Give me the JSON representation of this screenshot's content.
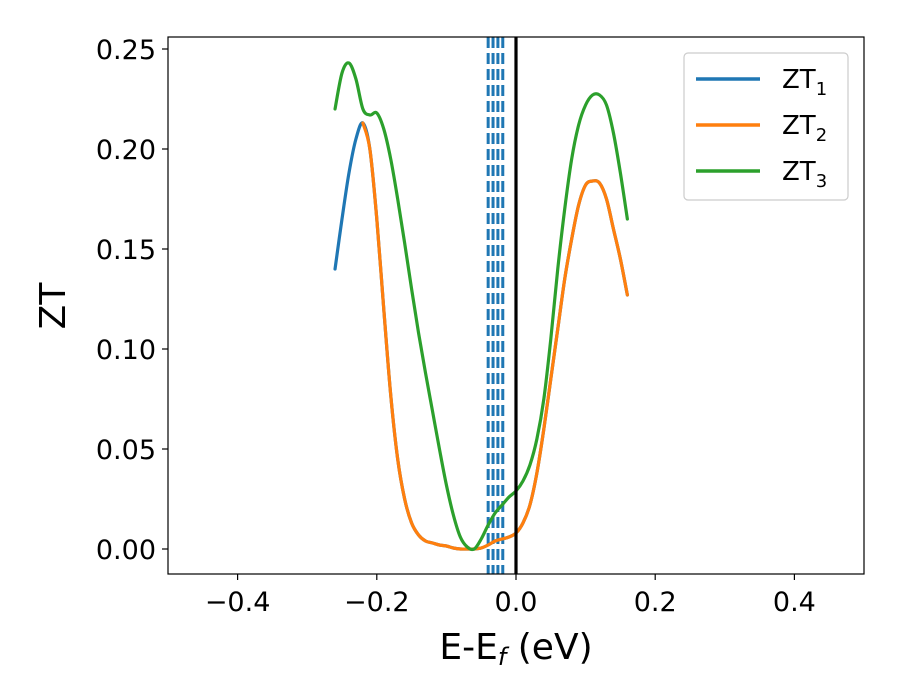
{
  "chart_data": {
    "type": "line",
    "xlabel": "E-E",
    "xlabel_sub": "f",
    "xlabel_unit": " (eV)",
    "ylabel": "ZT",
    "xlim": [
      -0.5,
      0.5
    ],
    "ylim": [
      -0.0125,
      0.256
    ],
    "xticks": [
      -0.4,
      -0.2,
      0.0,
      0.2,
      0.4
    ],
    "xtick_labels": [
      "−0.4",
      "−0.2",
      "0.0",
      "0.2",
      "0.4"
    ],
    "yticks": [
      0.0,
      0.05,
      0.1,
      0.15,
      0.2,
      0.25
    ],
    "ytick_labels": [
      "0.00",
      "0.05",
      "0.10",
      "0.15",
      "0.20",
      "0.25"
    ],
    "grid": false,
    "legend_position": "top-right",
    "series": [
      {
        "name": "ZT",
        "sub": "1",
        "color": "#1f77b4",
        "x": [
          -0.26,
          -0.25,
          -0.24,
          -0.23,
          -0.22,
          -0.21,
          -0.2,
          -0.19,
          -0.18,
          -0.17,
          -0.16,
          -0.15,
          -0.14,
          -0.13,
          -0.12,
          -0.11,
          -0.1,
          -0.09,
          -0.08,
          -0.07,
          -0.06,
          -0.05,
          -0.04,
          -0.03,
          -0.02,
          -0.01,
          0.0,
          0.01,
          0.02,
          0.03,
          0.04,
          0.05,
          0.06,
          0.07,
          0.08,
          0.09,
          0.1,
          0.11,
          0.12,
          0.13,
          0.14,
          0.15,
          0.16
        ],
        "y": [
          0.14,
          0.165,
          0.188,
          0.205,
          0.213,
          0.2,
          0.165,
          0.12,
          0.077,
          0.045,
          0.025,
          0.013,
          0.007,
          0.004,
          0.003,
          0.002,
          0.0015,
          0.0005,
          0.0,
          0.0,
          0.0,
          0.0005,
          0.002,
          0.004,
          0.005,
          0.006,
          0.008,
          0.013,
          0.022,
          0.038,
          0.06,
          0.085,
          0.11,
          0.135,
          0.155,
          0.172,
          0.182,
          0.184,
          0.183,
          0.175,
          0.16,
          0.145,
          0.127
        ]
      },
      {
        "name": "ZT",
        "sub": "2",
        "color": "#ff7f0e",
        "x": [
          -0.22,
          -0.21,
          -0.2,
          -0.19,
          -0.18,
          -0.17,
          -0.16,
          -0.15,
          -0.14,
          -0.13,
          -0.12,
          -0.11,
          -0.1,
          -0.09,
          -0.08,
          -0.07,
          -0.06,
          -0.05,
          -0.04,
          -0.03,
          -0.02,
          -0.01,
          0.0,
          0.01,
          0.02,
          0.03,
          0.04,
          0.05,
          0.06,
          0.07,
          0.08,
          0.09,
          0.1,
          0.11,
          0.12,
          0.13,
          0.14,
          0.15,
          0.16
        ],
        "y": [
          0.213,
          0.2,
          0.165,
          0.12,
          0.077,
          0.045,
          0.025,
          0.013,
          0.007,
          0.004,
          0.003,
          0.002,
          0.0015,
          0.0005,
          0.0,
          0.0,
          0.0,
          0.0005,
          0.002,
          0.004,
          0.005,
          0.006,
          0.008,
          0.013,
          0.022,
          0.038,
          0.06,
          0.085,
          0.11,
          0.135,
          0.155,
          0.172,
          0.182,
          0.184,
          0.183,
          0.175,
          0.16,
          0.145,
          0.127
        ]
      },
      {
        "name": "ZT",
        "sub": "3",
        "color": "#2ca02c",
        "x": [
          -0.26,
          -0.25,
          -0.24,
          -0.23,
          -0.22,
          -0.21,
          -0.2,
          -0.19,
          -0.18,
          -0.17,
          -0.16,
          -0.15,
          -0.14,
          -0.13,
          -0.12,
          -0.11,
          -0.1,
          -0.09,
          -0.08,
          -0.07,
          -0.06,
          -0.05,
          -0.04,
          -0.03,
          -0.02,
          -0.01,
          0.0,
          0.01,
          0.02,
          0.03,
          0.04,
          0.05,
          0.06,
          0.07,
          0.08,
          0.09,
          0.1,
          0.11,
          0.12,
          0.13,
          0.14,
          0.15,
          0.16
        ],
        "y": [
          0.22,
          0.238,
          0.243,
          0.235,
          0.22,
          0.217,
          0.218,
          0.21,
          0.195,
          0.175,
          0.153,
          0.13,
          0.108,
          0.088,
          0.069,
          0.05,
          0.032,
          0.017,
          0.006,
          0.001,
          0.0,
          0.005,
          0.012,
          0.018,
          0.022,
          0.026,
          0.029,
          0.034,
          0.042,
          0.055,
          0.075,
          0.105,
          0.14,
          0.17,
          0.195,
          0.212,
          0.222,
          0.227,
          0.227,
          0.222,
          0.208,
          0.188,
          0.165
        ]
      }
    ],
    "annotations": {
      "vlines_dashed": {
        "color": "#1f77b4",
        "x": [
          -0.04,
          -0.033,
          -0.026,
          -0.019
        ]
      },
      "vline_solid": {
        "color": "#000000",
        "x": 0.0
      }
    }
  }
}
